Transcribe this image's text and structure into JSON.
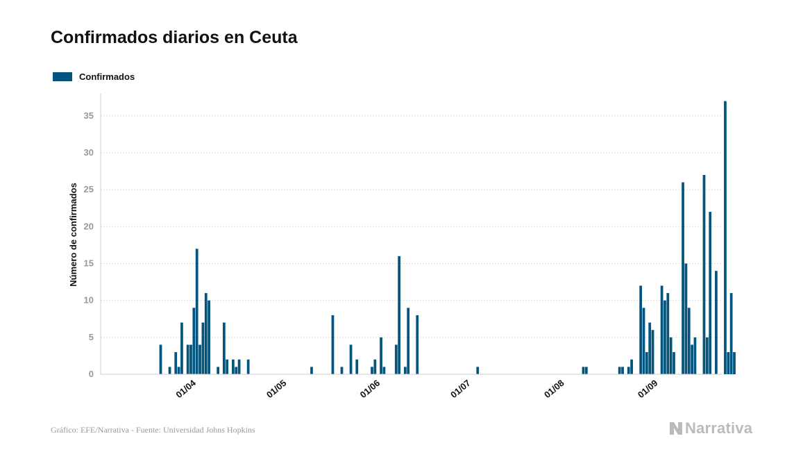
{
  "chart_data": {
    "type": "bar",
    "title": "Confirmados diarios en Ceuta",
    "xlabel": "",
    "ylabel": "Número de confirmados",
    "ylim": [
      0,
      38
    ],
    "yticks": [
      0,
      5,
      10,
      15,
      20,
      25,
      30,
      35
    ],
    "grid": true,
    "legend_position": "top-left",
    "x_tick_labels": [
      "01/04",
      "01/05",
      "01/06",
      "01/07",
      "01/08",
      "01/09"
    ],
    "x_tick_day_index": [
      20,
      50,
      81,
      111,
      142,
      173
    ],
    "day_range": [
      0,
      198
    ],
    "series": [
      {
        "name": "Confirmados",
        "color": "#03557d",
        "points": [
          [
            10,
            4
          ],
          [
            13,
            1
          ],
          [
            15,
            3
          ],
          [
            16,
            1
          ],
          [
            17,
            7
          ],
          [
            19,
            4
          ],
          [
            20,
            4
          ],
          [
            21,
            9
          ],
          [
            22,
            17
          ],
          [
            23,
            4
          ],
          [
            24,
            7
          ],
          [
            25,
            11
          ],
          [
            26,
            10
          ],
          [
            29,
            1
          ],
          [
            31,
            7
          ],
          [
            32,
            2
          ],
          [
            34,
            2
          ],
          [
            35,
            1
          ],
          [
            36,
            2
          ],
          [
            39,
            2
          ],
          [
            60,
            1
          ],
          [
            67,
            8
          ],
          [
            70,
            1
          ],
          [
            73,
            4
          ],
          [
            75,
            2
          ],
          [
            80,
            1
          ],
          [
            81,
            2
          ],
          [
            83,
            5
          ],
          [
            84,
            1
          ],
          [
            88,
            4
          ],
          [
            89,
            16
          ],
          [
            91,
            1
          ],
          [
            92,
            9
          ],
          [
            95,
            8
          ],
          [
            115,
            1
          ],
          [
            150,
            1
          ],
          [
            151,
            1
          ],
          [
            162,
            1
          ],
          [
            163,
            1
          ],
          [
            165,
            1
          ],
          [
            166,
            2
          ],
          [
            169,
            12
          ],
          [
            170,
            9
          ],
          [
            171,
            3
          ],
          [
            172,
            7
          ],
          [
            173,
            6
          ],
          [
            176,
            12
          ],
          [
            177,
            10
          ],
          [
            178,
            11
          ],
          [
            179,
            5
          ],
          [
            180,
            3
          ],
          [
            183,
            26
          ],
          [
            184,
            15
          ],
          [
            185,
            9
          ],
          [
            186,
            4
          ],
          [
            187,
            5
          ],
          [
            190,
            27
          ],
          [
            191,
            5
          ],
          [
            192,
            22
          ],
          [
            194,
            14
          ],
          [
            197,
            37
          ],
          [
            198,
            3
          ],
          [
            199,
            11
          ],
          [
            200,
            3
          ]
        ]
      }
    ]
  },
  "legend": {
    "label": "Confirmados",
    "color": "#03557d"
  },
  "footer": {
    "source": "Gráfico: EFE/Narrativa - Fuente: Universidad Johns Hopkins"
  },
  "logo": {
    "text": "Narrativa",
    "icon": "narrativa-n-icon"
  }
}
